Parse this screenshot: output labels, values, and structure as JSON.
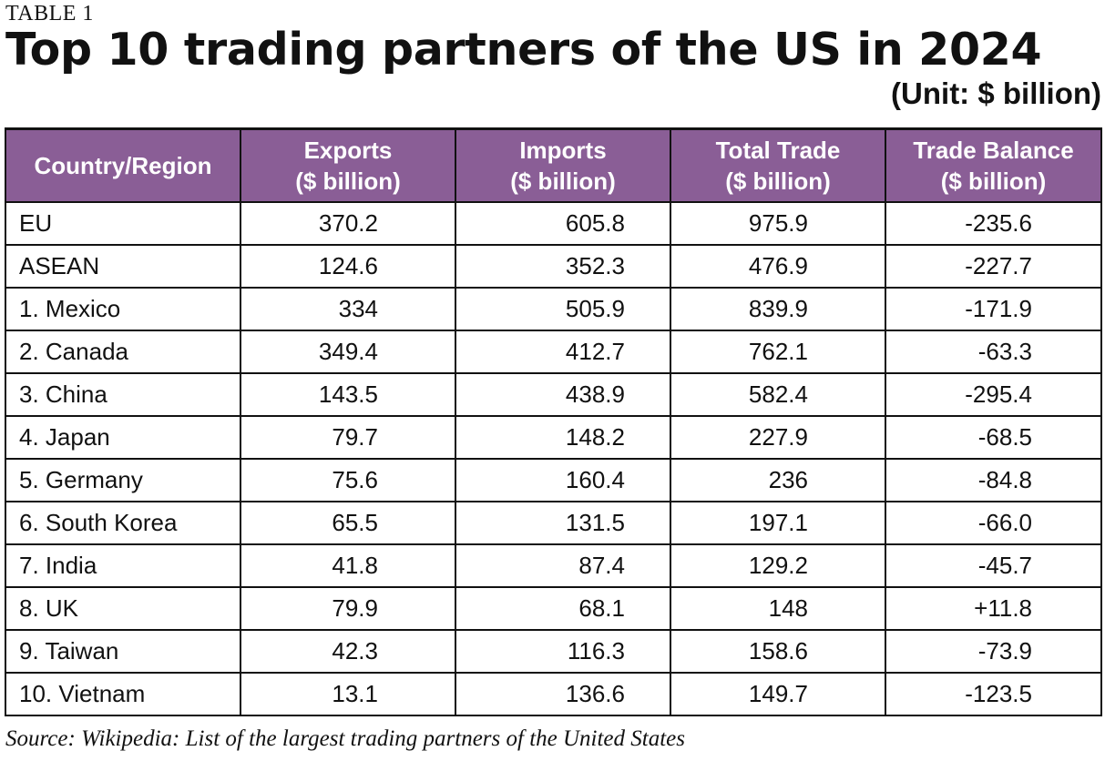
{
  "table_label": "TABLE 1",
  "title": "Top 10 trading partners of the US in 2024",
  "unit": "(Unit: $ billion)",
  "source": "Source: Wikipedia: List of the largest trading partners of the United States",
  "colors": {
    "header_bg": "#8a5e96",
    "header_text": "#ffffff",
    "border": "#111111"
  },
  "chart_data": {
    "type": "table",
    "title": "Top 10 trading partners of the US in 2024",
    "columns": [
      {
        "l1": "Country/Region",
        "l2": ""
      },
      {
        "l1": "Exports",
        "l2": "($ billion)"
      },
      {
        "l1": "Imports",
        "l2": "($ billion)"
      },
      {
        "l1": "Total Trade",
        "l2": "($ billion)"
      },
      {
        "l1": "Trade Balance",
        "l2": "($ billion)"
      }
    ],
    "rows": [
      {
        "country": "EU",
        "exports": "370.2",
        "imports": "605.8",
        "total": "975.9",
        "balance": "-235.6"
      },
      {
        "country": "ASEAN",
        "exports": "124.6",
        "imports": "352.3",
        "total": "476.9",
        "balance": "-227.7"
      },
      {
        "country": "1. Mexico",
        "exports": "334",
        "imports": "505.9",
        "total": "839.9",
        "balance": "-171.9"
      },
      {
        "country": "2. Canada",
        "exports": "349.4",
        "imports": "412.7",
        "total": "762.1",
        "balance": "-63.3"
      },
      {
        "country": "3. China",
        "exports": "143.5",
        "imports": "438.9",
        "total": "582.4",
        "balance": "-295.4"
      },
      {
        "country": "4. Japan",
        "exports": "79.7",
        "imports": "148.2",
        "total": "227.9",
        "balance": "-68.5"
      },
      {
        "country": "5. Germany",
        "exports": "75.6",
        "imports": "160.4",
        "total": "236",
        "balance": "-84.8"
      },
      {
        "country": "6. South Korea",
        "exports": "65.5",
        "imports": "131.5",
        "total": "197.1",
        "balance": "-66.0"
      },
      {
        "country": "7. India",
        "exports": "41.8",
        "imports": "87.4",
        "total": "129.2",
        "balance": "-45.7"
      },
      {
        "country": "8. UK",
        "exports": "79.9",
        "imports": "68.1",
        "total": "148",
        "balance": "+11.8"
      },
      {
        "country": "9. Taiwan",
        "exports": "42.3",
        "imports": "116.3",
        "total": "158.6",
        "balance": "-73.9"
      },
      {
        "country": "10. Vietnam",
        "exports": "13.1",
        "imports": "136.6",
        "total": "149.7",
        "balance": "-123.5"
      }
    ]
  }
}
